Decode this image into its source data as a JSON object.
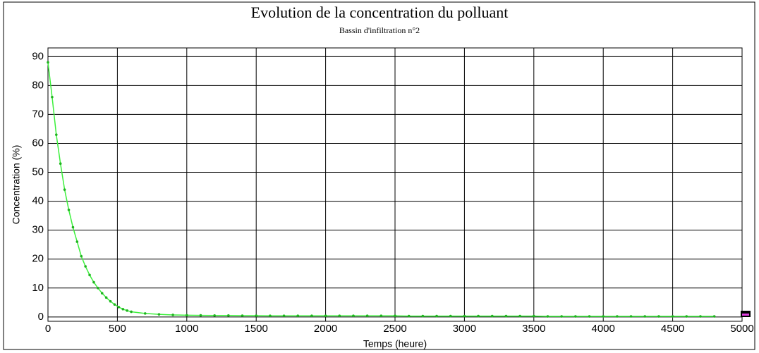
{
  "chart_data": {
    "type": "line",
    "title": "Evolution de la concentration du polluant",
    "subtitle": "Bassin d'infiltration n°2",
    "xlabel": "Temps (heure)",
    "ylabel": "Concentration (%)",
    "x": [
      0,
      30,
      60,
      90,
      120,
      150,
      180,
      210,
      240,
      270,
      300,
      330,
      360,
      390,
      420,
      450,
      480,
      510,
      540,
      570,
      600,
      700,
      800,
      900,
      1000,
      1100,
      1200,
      1300,
      1400,
      1500,
      1600,
      1700,
      1800,
      1900,
      2000,
      2100,
      2200,
      2300,
      2400,
      2500,
      2600,
      2700,
      2800,
      2900,
      3000,
      3100,
      3200,
      3300,
      3400,
      3500,
      3600,
      3700,
      3800,
      3900,
      4000,
      4100,
      4200,
      4300,
      4400,
      4500,
      4600,
      4700,
      4800
    ],
    "values": [
      88,
      76,
      63,
      53,
      44,
      37,
      31,
      26,
      21,
      17.5,
      14.5,
      12,
      10,
      8.2,
      6.7,
      5.4,
      4.3,
      3.4,
      2.7,
      2.2,
      1.8,
      1.2,
      0.9,
      0.7,
      0.6,
      0.55,
      0.5,
      0.5,
      0.45,
      0.45,
      0.4,
      0.4,
      0.4,
      0.4,
      0.4,
      0.4,
      0.4,
      0.4,
      0.4,
      0.4,
      0.3,
      0.3,
      0.3,
      0.3,
      0.3,
      0.3,
      0.3,
      0.3,
      0.3,
      0.3,
      0.2,
      0.2,
      0.2,
      0.2,
      0.2,
      0.2,
      0.2,
      0.2,
      0.2,
      0.2,
      0.2,
      0.2,
      0.2
    ],
    "color": "#3cf03c",
    "marker_color": "#1fb41f",
    "xlim": [
      0,
      5000
    ],
    "ylim": [
      -1.5,
      93
    ],
    "xticks": [
      0,
      500,
      1000,
      1500,
      2000,
      2500,
      3000,
      3500,
      4000,
      4500,
      5000
    ],
    "yticks": [
      0,
      10,
      20,
      30,
      40,
      50,
      60,
      70,
      80,
      90
    ],
    "grid": true
  }
}
